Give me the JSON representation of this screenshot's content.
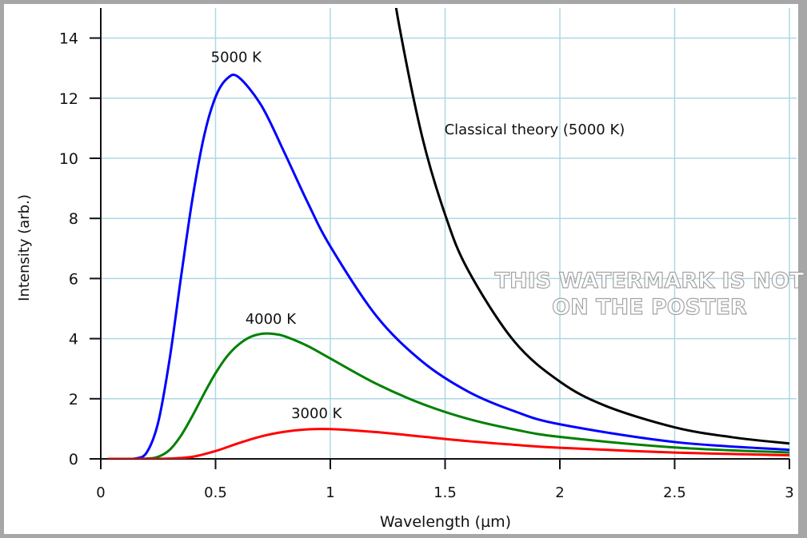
{
  "chart_data": {
    "type": "line",
    "title": "",
    "xlabel": "Wavelength (µm)",
    "ylabel": "Intensity (arb.)",
    "xlim": [
      0,
      3
    ],
    "ylim": [
      0,
      15
    ],
    "xticks": [
      "0",
      "0.5",
      "1",
      "1.5",
      "2",
      "2.5",
      "3"
    ],
    "yticks": [
      "0",
      "2",
      "4",
      "6",
      "8",
      "10",
      "12",
      "14"
    ],
    "grid": true,
    "grid_color": "#add8e6",
    "series": [
      {
        "name": "5000 K",
        "color": "#0000ff",
        "x": [
          0.03,
          0.1,
          0.15,
          0.2,
          0.25,
          0.3,
          0.35,
          0.4,
          0.45,
          0.5,
          0.55,
          0.6,
          0.7,
          0.8,
          0.9,
          1.0,
          1.2,
          1.4,
          1.6,
          1.8,
          2.0,
          2.5,
          3.0
        ],
        "y": [
          0,
          0,
          0.01,
          0.21,
          1.21,
          3.32,
          6.07,
          8.68,
          10.74,
          12.04,
          12.65,
          12.7,
          11.75,
          10.19,
          8.55,
          7.07,
          4.76,
          3.24,
          2.24,
          1.59,
          1.15,
          0.56,
          0.3
        ]
      },
      {
        "name": "4000 K",
        "color": "#008000",
        "x": [
          0.03,
          0.1,
          0.2,
          0.25,
          0.3,
          0.35,
          0.4,
          0.45,
          0.5,
          0.55,
          0.6,
          0.65,
          0.7,
          0.75,
          0.8,
          0.9,
          1.0,
          1.2,
          1.4,
          1.6,
          1.8,
          2.0,
          2.5,
          3.0
        ],
        "y": [
          0,
          0,
          0.01,
          0.07,
          0.3,
          0.78,
          1.44,
          2.17,
          2.85,
          3.41,
          3.8,
          4.05,
          4.16,
          4.16,
          4.08,
          3.76,
          3.34,
          2.5,
          1.83,
          1.33,
          0.98,
          0.73,
          0.38,
          0.21
        ]
      },
      {
        "name": "3000 K",
        "color": "#ff0000",
        "x": [
          0.03,
          0.1,
          0.2,
          0.3,
          0.4,
          0.5,
          0.6,
          0.7,
          0.8,
          0.9,
          1.0,
          1.2,
          1.4,
          1.6,
          1.8,
          2.0,
          2.5,
          3.0
        ],
        "y": [
          0,
          0,
          0,
          0.01,
          0.07,
          0.26,
          0.52,
          0.75,
          0.9,
          0.98,
          0.99,
          0.89,
          0.74,
          0.59,
          0.47,
          0.37,
          0.21,
          0.12
        ]
      },
      {
        "name": "Classical theory (5000 K)",
        "color": "#000000",
        "x": [
          1.25,
          1.3,
          1.4,
          1.5,
          1.6,
          1.8,
          2.0,
          2.2,
          2.5,
          2.75,
          3.0
        ],
        "y": [
          16.87,
          14.42,
          10.72,
          8.13,
          6.28,
          3.92,
          2.57,
          1.76,
          1.05,
          0.72,
          0.51
        ]
      }
    ],
    "annotations": [
      {
        "text": "5000 K",
        "x": 0.59,
        "y": 13.2
      },
      {
        "text": "4000 K",
        "x": 0.74,
        "y": 4.5
      },
      {
        "text": "3000 K",
        "x": 0.94,
        "y": 1.35
      },
      {
        "text": "Classical theory (5000 K)",
        "x": 1.89,
        "y": 10.8
      }
    ]
  },
  "watermark": {
    "line1": "THIS WATERMARK IS NOT",
    "line2": "ON THE POSTER"
  }
}
